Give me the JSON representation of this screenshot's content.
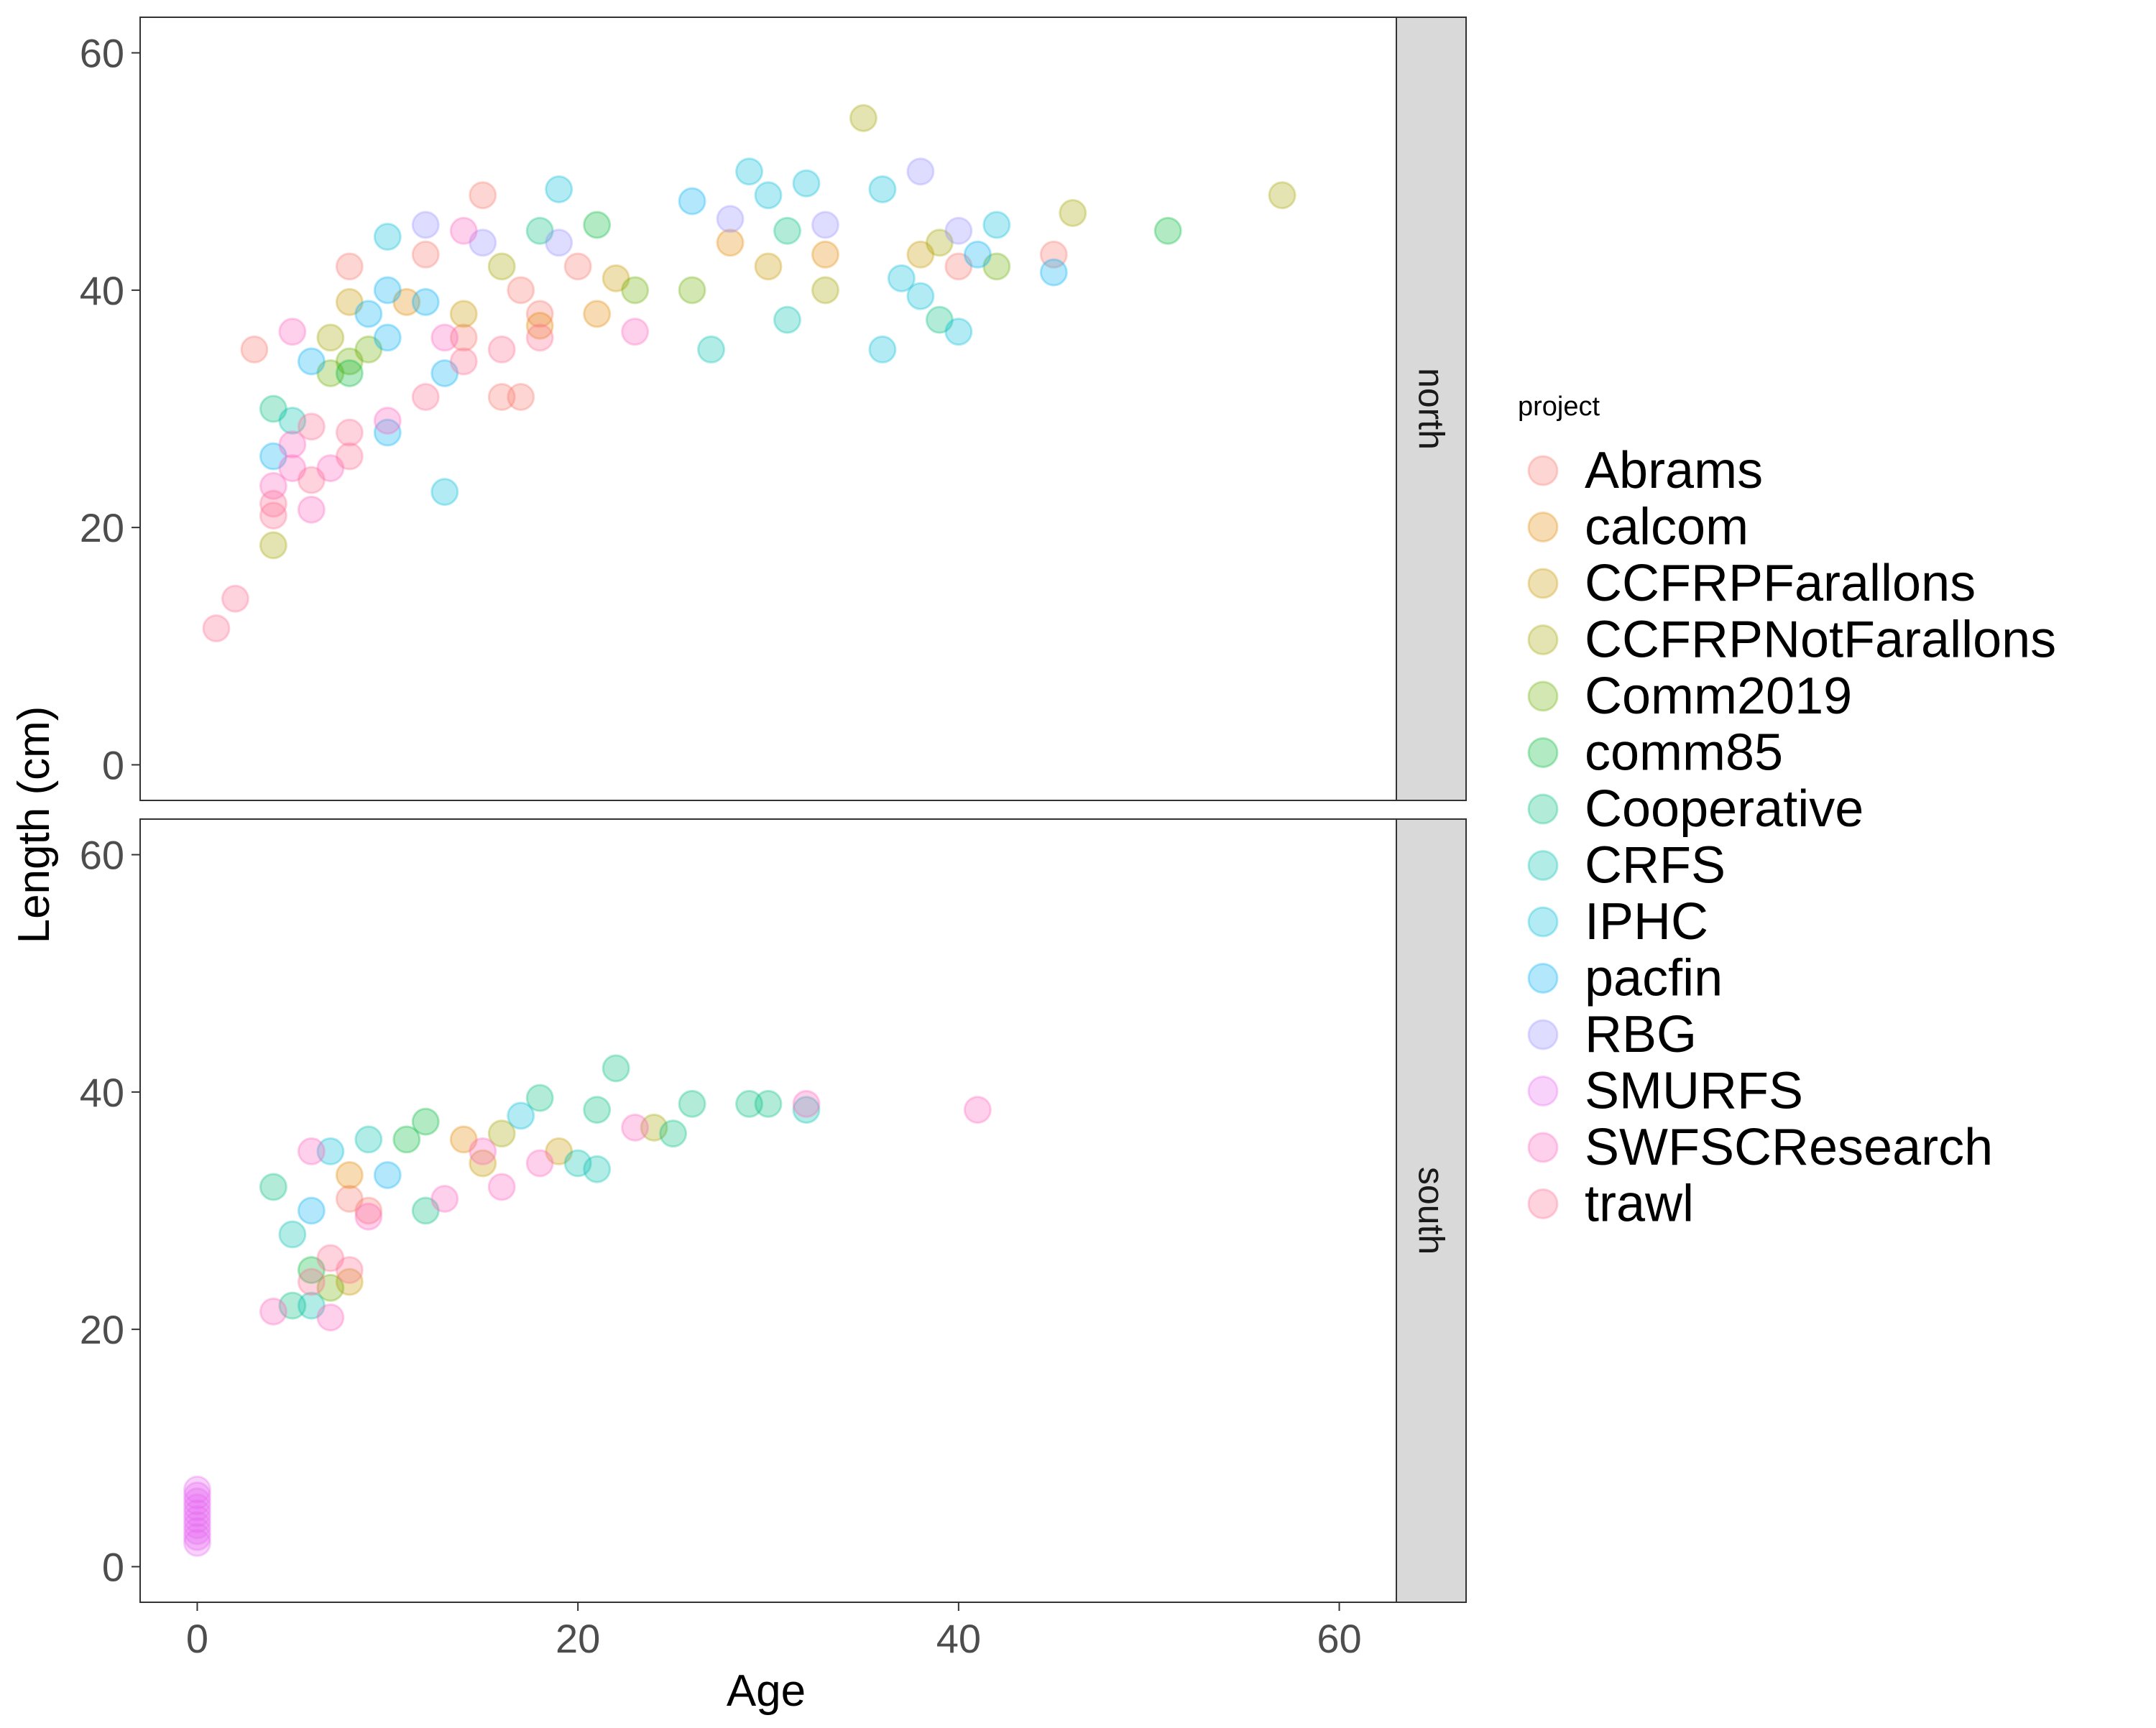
{
  "chart_data": {
    "type": "scatter",
    "xlabel": "Age",
    "ylabel": "Length (cm)",
    "xlim": [
      -3,
      63
    ],
    "ylim": [
      -3,
      63
    ],
    "x_ticks": [
      0,
      20,
      40,
      60
    ],
    "y_ticks": [
      0,
      20,
      40,
      60
    ],
    "x_tick_labels": [
      "0",
      "20",
      "40",
      "60"
    ],
    "y_tick_labels": [
      "0",
      "20",
      "40",
      "60"
    ],
    "grid": false,
    "facets": [
      "north",
      "south"
    ],
    "legend": {
      "title": "project",
      "placement": "right",
      "items": [
        {
          "label": "Abrams",
          "color": "#F8766D"
        },
        {
          "label": "calcom",
          "color": "#E58700"
        },
        {
          "label": "CCFRPFarallons",
          "color": "#C99800"
        },
        {
          "label": "CCFRPNotFarallons",
          "color": "#A3A500"
        },
        {
          "label": "Comm2019",
          "color": "#6BB100"
        },
        {
          "label": "comm85",
          "color": "#00BA38"
        },
        {
          "label": "Cooperative",
          "color": "#00BF7D"
        },
        {
          "label": "CRFS",
          "color": "#00C0AF"
        },
        {
          "label": "IPHC",
          "color": "#00BCD8"
        },
        {
          "label": "pacfin",
          "color": "#00B0F6"
        },
        {
          "label": "RBG",
          "color": "#9590FF"
        },
        {
          "label": "SMURFS",
          "color": "#E76BF3"
        },
        {
          "label": "SWFSCResearch",
          "color": "#FF62BC"
        },
        {
          "label": "trawl",
          "color": "#FF6C91"
        }
      ]
    },
    "series": [
      {
        "name": "Abrams",
        "points": [
          {
            "facet": "north",
            "x": 3,
            "y": 35
          },
          {
            "facet": "north",
            "x": 8,
            "y": 42
          },
          {
            "facet": "north",
            "x": 12,
            "y": 43
          },
          {
            "facet": "north",
            "x": 15,
            "y": 48
          },
          {
            "facet": "north",
            "x": 17,
            "y": 40
          },
          {
            "facet": "north",
            "x": 17,
            "y": 31
          },
          {
            "facet": "north",
            "x": 18,
            "y": 38
          },
          {
            "facet": "north",
            "x": 14,
            "y": 36
          },
          {
            "facet": "north",
            "x": 20,
            "y": 42
          },
          {
            "facet": "north",
            "x": 45,
            "y": 43
          },
          {
            "facet": "north",
            "x": 40,
            "y": 42
          },
          {
            "facet": "north",
            "x": 16,
            "y": 31
          },
          {
            "facet": "south",
            "x": 8,
            "y": 31
          },
          {
            "facet": "south",
            "x": 9,
            "y": 30
          }
        ]
      },
      {
        "name": "calcom",
        "points": [
          {
            "facet": "north",
            "x": 11,
            "y": 39
          },
          {
            "facet": "north",
            "x": 18,
            "y": 37
          },
          {
            "facet": "north",
            "x": 21,
            "y": 38
          },
          {
            "facet": "north",
            "x": 28,
            "y": 44
          },
          {
            "facet": "north",
            "x": 33,
            "y": 43
          },
          {
            "facet": "south",
            "x": 8,
            "y": 33
          },
          {
            "facet": "south",
            "x": 14,
            "y": 36
          }
        ]
      },
      {
        "name": "CCFRPFarallons",
        "points": [
          {
            "facet": "north",
            "x": 8,
            "y": 39
          },
          {
            "facet": "north",
            "x": 14,
            "y": 38
          },
          {
            "facet": "north",
            "x": 22,
            "y": 41
          },
          {
            "facet": "north",
            "x": 30,
            "y": 42
          },
          {
            "facet": "north",
            "x": 38,
            "y": 43
          },
          {
            "facet": "south",
            "x": 8,
            "y": 24
          },
          {
            "facet": "south",
            "x": 15,
            "y": 34
          },
          {
            "facet": "south",
            "x": 19,
            "y": 35
          }
        ]
      },
      {
        "name": "CCFRPNotFarallons",
        "points": [
          {
            "facet": "north",
            "x": 4,
            "y": 18.5
          },
          {
            "facet": "north",
            "x": 7,
            "y": 36
          },
          {
            "facet": "north",
            "x": 35,
            "y": 54.5
          },
          {
            "facet": "north",
            "x": 57,
            "y": 48
          },
          {
            "facet": "north",
            "x": 46,
            "y": 46.5
          },
          {
            "facet": "north",
            "x": 33,
            "y": 40
          },
          {
            "facet": "north",
            "x": 39,
            "y": 44
          },
          {
            "facet": "north",
            "x": 16,
            "y": 42
          },
          {
            "facet": "south",
            "x": 16,
            "y": 36.5
          },
          {
            "facet": "south",
            "x": 24,
            "y": 37
          }
        ]
      },
      {
        "name": "Comm2019",
        "points": [
          {
            "facet": "north",
            "x": 7,
            "y": 33
          },
          {
            "facet": "north",
            "x": 8,
            "y": 34
          },
          {
            "facet": "north",
            "x": 9,
            "y": 35
          },
          {
            "facet": "north",
            "x": 23,
            "y": 40
          },
          {
            "facet": "north",
            "x": 26,
            "y": 40
          },
          {
            "facet": "north",
            "x": 42,
            "y": 42
          },
          {
            "facet": "south",
            "x": 7,
            "y": 23.5
          }
        ]
      },
      {
        "name": "comm85",
        "points": [
          {
            "facet": "north",
            "x": 8,
            "y": 33
          },
          {
            "facet": "north",
            "x": 21,
            "y": 45.5
          },
          {
            "facet": "north",
            "x": 51,
            "y": 45
          },
          {
            "facet": "south",
            "x": 11,
            "y": 36
          },
          {
            "facet": "south",
            "x": 12,
            "y": 37.5
          },
          {
            "facet": "south",
            "x": 6,
            "y": 25
          }
        ]
      },
      {
        "name": "Cooperative",
        "points": [
          {
            "facet": "north",
            "x": 4,
            "y": 30
          },
          {
            "facet": "north",
            "x": 18,
            "y": 45
          },
          {
            "facet": "north",
            "x": 31,
            "y": 45
          },
          {
            "facet": "north",
            "x": 39,
            "y": 37.5
          },
          {
            "facet": "south",
            "x": 4,
            "y": 32
          },
          {
            "facet": "south",
            "x": 18,
            "y": 39.5
          },
          {
            "facet": "south",
            "x": 22,
            "y": 42
          },
          {
            "facet": "south",
            "x": 26,
            "y": 39
          },
          {
            "facet": "south",
            "x": 29,
            "y": 39
          },
          {
            "facet": "south",
            "x": 30,
            "y": 39
          },
          {
            "facet": "south",
            "x": 21,
            "y": 38.5
          },
          {
            "facet": "south",
            "x": 25,
            "y": 36.5
          },
          {
            "facet": "south",
            "x": 12,
            "y": 30
          },
          {
            "facet": "south",
            "x": 5,
            "y": 22
          }
        ]
      },
      {
        "name": "CRFS",
        "points": [
          {
            "facet": "north",
            "x": 5,
            "y": 29
          },
          {
            "facet": "north",
            "x": 31,
            "y": 37.5
          },
          {
            "facet": "north",
            "x": 27,
            "y": 35
          },
          {
            "facet": "south",
            "x": 5,
            "y": 28
          },
          {
            "facet": "south",
            "x": 9,
            "y": 36
          },
          {
            "facet": "south",
            "x": 32,
            "y": 38.5
          },
          {
            "facet": "south",
            "x": 20,
            "y": 34
          },
          {
            "facet": "south",
            "x": 21,
            "y": 33.5
          },
          {
            "facet": "south",
            "x": 6,
            "y": 22
          }
        ]
      },
      {
        "name": "IPHC",
        "points": [
          {
            "facet": "north",
            "x": 10,
            "y": 44.5
          },
          {
            "facet": "north",
            "x": 19,
            "y": 48.5
          },
          {
            "facet": "north",
            "x": 29,
            "y": 50
          },
          {
            "facet": "north",
            "x": 32,
            "y": 49
          },
          {
            "facet": "north",
            "x": 36,
            "y": 48.5
          },
          {
            "facet": "north",
            "x": 37,
            "y": 41
          },
          {
            "facet": "north",
            "x": 38,
            "y": 39.5
          },
          {
            "facet": "north",
            "x": 40,
            "y": 36.5
          },
          {
            "facet": "north",
            "x": 36,
            "y": 35
          },
          {
            "facet": "north",
            "x": 13,
            "y": 23
          },
          {
            "facet": "north",
            "x": 42,
            "y": 45.5
          },
          {
            "facet": "north",
            "x": 30,
            "y": 48
          },
          {
            "facet": "south",
            "x": 7,
            "y": 35
          },
          {
            "facet": "south",
            "x": 17,
            "y": 38
          }
        ]
      },
      {
        "name": "pacfin",
        "points": [
          {
            "facet": "north",
            "x": 10,
            "y": 40
          },
          {
            "facet": "north",
            "x": 12,
            "y": 39
          },
          {
            "facet": "north",
            "x": 13,
            "y": 33
          },
          {
            "facet": "north",
            "x": 26,
            "y": 47.5
          },
          {
            "facet": "north",
            "x": 45,
            "y": 41.5
          },
          {
            "facet": "north",
            "x": 41,
            "y": 43
          },
          {
            "facet": "north",
            "x": 10,
            "y": 36
          },
          {
            "facet": "north",
            "x": 9,
            "y": 38
          },
          {
            "facet": "north",
            "x": 6,
            "y": 34
          },
          {
            "facet": "north",
            "x": 4,
            "y": 26
          },
          {
            "facet": "north",
            "x": 10,
            "y": 28
          },
          {
            "facet": "south",
            "x": 10,
            "y": 33
          },
          {
            "facet": "south",
            "x": 6,
            "y": 30
          }
        ]
      },
      {
        "name": "RBG",
        "points": [
          {
            "facet": "north",
            "x": 12,
            "y": 45.5
          },
          {
            "facet": "north",
            "x": 38,
            "y": 50
          },
          {
            "facet": "north",
            "x": 33,
            "y": 45.5
          },
          {
            "facet": "north",
            "x": 15,
            "y": 44
          },
          {
            "facet": "north",
            "x": 19,
            "y": 44
          },
          {
            "facet": "north",
            "x": 28,
            "y": 46
          },
          {
            "facet": "north",
            "x": 40,
            "y": 45
          }
        ]
      },
      {
        "name": "SMURFS",
        "points": [
          {
            "facet": "south",
            "x": 0,
            "y": 2.5
          },
          {
            "facet": "south",
            "x": 0,
            "y": 3
          },
          {
            "facet": "south",
            "x": 0,
            "y": 3.5
          },
          {
            "facet": "south",
            "x": 0,
            "y": 4
          },
          {
            "facet": "south",
            "x": 0,
            "y": 4.5
          },
          {
            "facet": "south",
            "x": 0,
            "y": 5
          },
          {
            "facet": "south",
            "x": 0,
            "y": 5.5
          },
          {
            "facet": "south",
            "x": 0,
            "y": 6
          },
          {
            "facet": "south",
            "x": 0,
            "y": 6.5
          },
          {
            "facet": "south",
            "x": 0,
            "y": 2
          }
        ]
      },
      {
        "name": "SWFSCResearch",
        "points": [
          {
            "facet": "north",
            "x": 5,
            "y": 36.5
          },
          {
            "facet": "north",
            "x": 4,
            "y": 23.5
          },
          {
            "facet": "north",
            "x": 5,
            "y": 25
          },
          {
            "facet": "north",
            "x": 6,
            "y": 21.5
          },
          {
            "facet": "north",
            "x": 5,
            "y": 27
          },
          {
            "facet": "north",
            "x": 7,
            "y": 25
          },
          {
            "facet": "north",
            "x": 14,
            "y": 45
          },
          {
            "facet": "north",
            "x": 23,
            "y": 36.5
          },
          {
            "facet": "north",
            "x": 10,
            "y": 29
          },
          {
            "facet": "north",
            "x": 13,
            "y": 36
          },
          {
            "facet": "south",
            "x": 41,
            "y": 38.5
          },
          {
            "facet": "south",
            "x": 32,
            "y": 39
          },
          {
            "facet": "south",
            "x": 23,
            "y": 37
          },
          {
            "facet": "south",
            "x": 4,
            "y": 21.5
          },
          {
            "facet": "south",
            "x": 7,
            "y": 21
          },
          {
            "facet": "south",
            "x": 6,
            "y": 35
          },
          {
            "facet": "south",
            "x": 9,
            "y": 29.5
          },
          {
            "facet": "south",
            "x": 16,
            "y": 32
          },
          {
            "facet": "south",
            "x": 18,
            "y": 34
          },
          {
            "facet": "south",
            "x": 13,
            "y": 31
          },
          {
            "facet": "south",
            "x": 15,
            "y": 35
          }
        ]
      },
      {
        "name": "trawl",
        "points": [
          {
            "facet": "north",
            "x": 1,
            "y": 11.5
          },
          {
            "facet": "north",
            "x": 2,
            "y": 14
          },
          {
            "facet": "north",
            "x": 4,
            "y": 21
          },
          {
            "facet": "north",
            "x": 4,
            "y": 22
          },
          {
            "facet": "north",
            "x": 6,
            "y": 24
          },
          {
            "facet": "north",
            "x": 8,
            "y": 28
          },
          {
            "facet": "north",
            "x": 6,
            "y": 28.5
          },
          {
            "facet": "north",
            "x": 8,
            "y": 26
          },
          {
            "facet": "north",
            "x": 12,
            "y": 31
          },
          {
            "facet": "north",
            "x": 14,
            "y": 34
          },
          {
            "facet": "north",
            "x": 16,
            "y": 35
          },
          {
            "facet": "north",
            "x": 18,
            "y": 36
          },
          {
            "facet": "south",
            "x": 8,
            "y": 25
          },
          {
            "facet": "south",
            "x": 7,
            "y": 26
          },
          {
            "facet": "south",
            "x": 6,
            "y": 24
          }
        ]
      }
    ]
  }
}
